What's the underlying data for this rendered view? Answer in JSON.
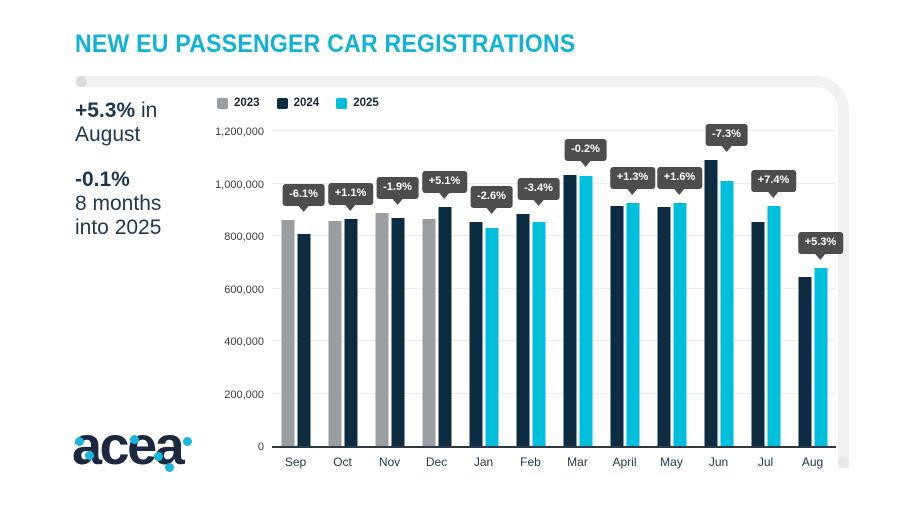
{
  "page": {
    "title": "NEW EU PASSENGER CAR REGISTRATIONS"
  },
  "stats": {
    "stat1_bold": "+5.3%",
    "stat1_rest": " in",
    "stat1_line2": "August",
    "stat2_bold": "-0.1%",
    "stat2_line2": "8 months",
    "stat2_line3": "into 2025"
  },
  "logo": {
    "text": "acea"
  },
  "colors": {
    "title_cyan": "#10b3d8",
    "navy": "#0d2c41",
    "cyan": "#00bfdd",
    "gray": "#9b9ea0",
    "tooltip_bg": "#4d4d4d",
    "text_navy": "#1d3850"
  },
  "chart_data": {
    "type": "bar",
    "title": "NEW EU PASSENGER CAR REGISTRATIONS",
    "categories": [
      "Sep",
      "Oct",
      "Nov",
      "Dec",
      "Jan",
      "Feb",
      "Mar",
      "April",
      "May",
      "Jun",
      "Jul",
      "Aug"
    ],
    "series": [
      {
        "name": "2023",
        "color": "#9b9ea0",
        "values": [
          861000,
          857000,
          887000,
          866000,
          null,
          null,
          null,
          null,
          null,
          null,
          null,
          null
        ]
      },
      {
        "name": "2024",
        "color": "#0d2c41",
        "values": [
          809000,
          866000,
          870000,
          911000,
          853000,
          884000,
          1032000,
          913000,
          912000,
          1090000,
          852000,
          644000
        ]
      },
      {
        "name": "2025",
        "color": "#00bfdd",
        "values": [
          null,
          null,
          null,
          null,
          831000,
          854000,
          1030000,
          925000,
          927000,
          1010000,
          915000,
          678000
        ]
      }
    ],
    "pct_labels": [
      "-6.1%",
      "+1.1%",
      "-1.9%",
      "+5.1%",
      "-2.6%",
      "-3.4%",
      "-0.2%",
      "+1.3%",
      "+1.6%",
      "-7.3%",
      "+7.4%",
      "+5.3%"
    ],
    "ylim": [
      0,
      1200000
    ],
    "yticks": [
      {
        "label": "1,200,000",
        "value": 1200000
      },
      {
        "label": "1,000,000",
        "value": 1000000
      },
      {
        "label": "800,000",
        "value": 800000
      },
      {
        "label": "600,000",
        "value": 600000
      },
      {
        "label": "400,000",
        "value": 400000
      },
      {
        "label": "200,000",
        "value": 200000
      },
      {
        "label": "0",
        "value": 0
      }
    ],
    "grid": true,
    "legend_position": "top-left"
  }
}
